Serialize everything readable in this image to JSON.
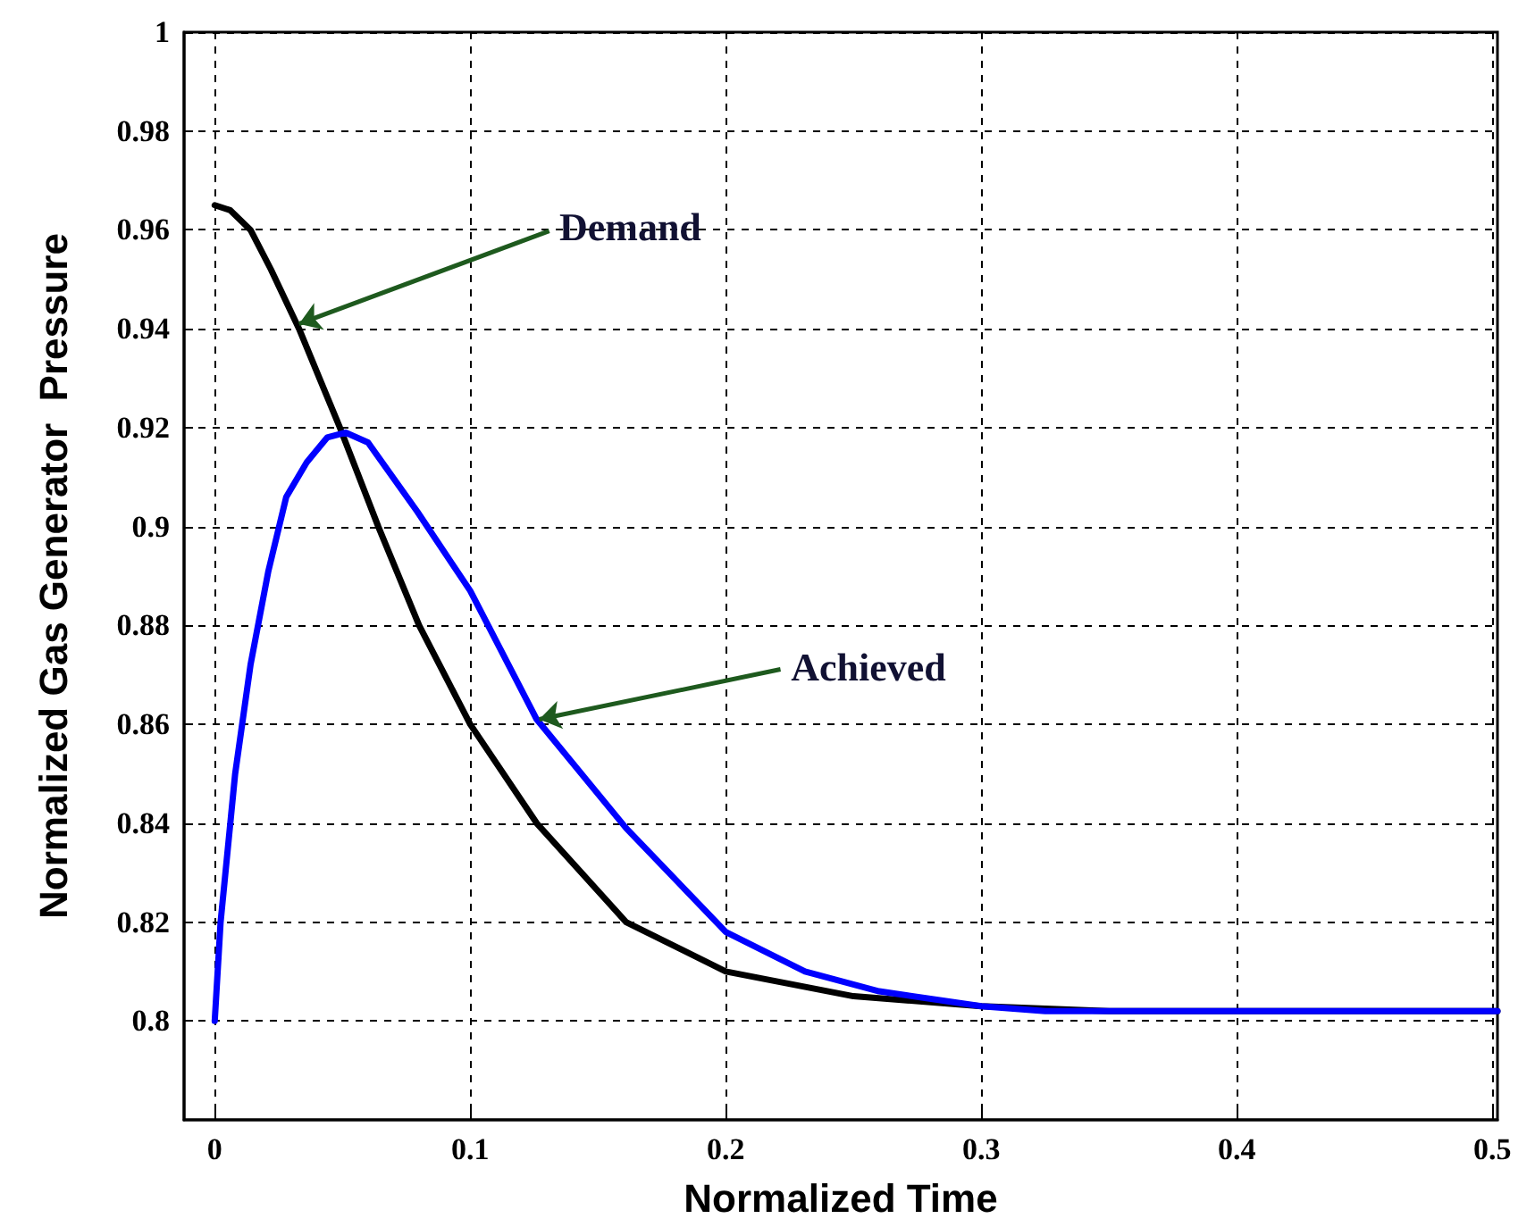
{
  "chart_data": {
    "type": "line",
    "xlabel": "Normalized Time",
    "ylabel": "Normalized Gas Generator  Pressure",
    "xlim": [
      -0.012,
      0.502
    ],
    "ylim": [
      0.78,
      1
    ],
    "xticks": [
      0,
      0.1,
      0.2,
      0.3,
      0.4,
      0.5
    ],
    "yticks": [
      0.8,
      0.82,
      0.84,
      0.86,
      0.88,
      0.9,
      0.92,
      0.94,
      0.96,
      0.98,
      1
    ],
    "grid": true,
    "marker": "none",
    "line_style": "solid",
    "series": [
      {
        "color": "#000000",
        "x": [
          0,
          0.006,
          0.014,
          0.022,
          0.033,
          0.041,
          0.049,
          0.064,
          0.08,
          0.1,
          0.126,
          0.161,
          0.2,
          0.25,
          0.3,
          0.35,
          0.4,
          0.45,
          0.502
        ],
        "values": [
          0.965,
          0.964,
          0.96,
          0.952,
          0.94,
          0.93,
          0.92,
          0.9,
          0.88,
          0.86,
          0.84,
          0.82,
          0.81,
          0.805,
          0.803,
          0.802,
          0.802,
          0.802,
          0.802
        ]
      },
      {
        "color": "#0000ff",
        "x": [
          0,
          0.0023,
          0.008,
          0.014,
          0.021,
          0.028,
          0.036,
          0.044,
          0.0513,
          0.06,
          0.0793,
          0.1,
          0.126,
          0.161,
          0.2,
          0.231,
          0.26,
          0.3,
          0.325,
          0.35,
          0.4,
          0.45,
          0.502
        ],
        "values": [
          0.8,
          0.82,
          0.85,
          0.872,
          0.891,
          0.906,
          0.913,
          0.918,
          0.919,
          0.917,
          0.903,
          0.887,
          0.861,
          0.839,
          0.818,
          0.81,
          0.806,
          0.803,
          0.802,
          0.802,
          0.802,
          0.802,
          0.802
        ]
      }
    ],
    "annotations": [
      {
        "text": "Demand",
        "x": 0.033,
        "y": 0.941
      },
      {
        "text": "Achieved",
        "x": 0.127,
        "y": 0.861
      }
    ]
  }
}
